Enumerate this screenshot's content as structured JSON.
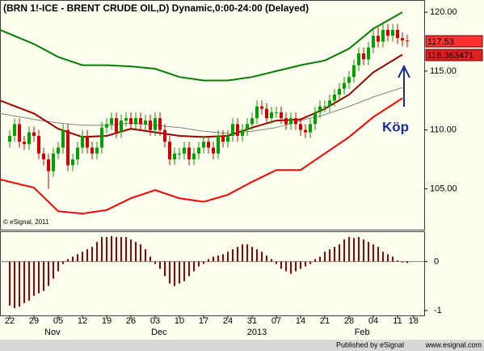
{
  "chart_data": [
    {
      "type": "candlestick",
      "title": "(BRN 1!-ICE - BRENT CRUDE OIL,D) Dynamic,0:00-24:00 (Delayed)",
      "annotation": "Köp",
      "watermark": "© eSignal, 2011",
      "up_color": "#00a000",
      "down_color": "#d00000",
      "x": [
        0,
        1,
        2,
        3,
        4,
        5,
        6,
        7,
        8,
        9,
        10,
        11,
        12,
        13,
        14,
        15,
        16,
        17,
        18,
        19,
        20,
        21,
        22,
        23,
        24,
        25,
        26,
        27,
        28,
        29,
        30,
        31,
        32,
        33,
        34,
        35,
        36,
        37,
        38,
        39,
        40,
        41,
        42,
        43,
        44,
        45,
        46,
        47,
        48,
        49,
        50,
        51,
        52,
        53,
        54,
        55,
        56,
        57,
        58,
        59,
        60,
        61,
        62,
        63,
        64,
        65,
        66,
        67,
        68,
        69,
        70,
        71,
        72,
        73,
        74,
        75,
        76,
        77,
        78,
        79,
        80,
        81,
        82
      ],
      "open": [
        109,
        109.5,
        110.5,
        109,
        108.8,
        109.8,
        109.5,
        108,
        107.5,
        106.5,
        108,
        108.5,
        110,
        107,
        107.5,
        108.5,
        109.5,
        108.5,
        108,
        108.5,
        110.2,
        110.5,
        111,
        109.8,
        110.8,
        111,
        110.5,
        111,
        110.5,
        110.8,
        110,
        111,
        110,
        109,
        107.5,
        108,
        108,
        108.5,
        107.5,
        108,
        108.5,
        109,
        108.5,
        108,
        109.5,
        109,
        109.5,
        110.5,
        109.5,
        110,
        110.5,
        111,
        112,
        111.8,
        111,
        111.5,
        111.5,
        111,
        110.5,
        111,
        110.5,
        110,
        109.8,
        110.5,
        111.5,
        112,
        112,
        112.5,
        113,
        113.5,
        114,
        114.5,
        115.5,
        116.5,
        116,
        117,
        118,
        117.5,
        118.5,
        118,
        118.5,
        117.8,
        117.6
      ],
      "high": [
        110,
        111,
        111,
        109.5,
        110.3,
        110.3,
        110,
        108.5,
        108,
        108.5,
        109,
        110.5,
        110.5,
        108,
        109,
        110,
        110,
        109,
        109,
        110.7,
        111,
        111.5,
        111.5,
        111.3,
        111.5,
        111.5,
        111.5,
        111.5,
        111.3,
        111.3,
        111.5,
        111.5,
        110.5,
        109.5,
        108.5,
        108.5,
        109,
        109,
        108.5,
        109,
        109.5,
        109.5,
        109,
        110,
        110,
        110,
        111,
        111,
        110.5,
        111,
        111.5,
        112.5,
        112.5,
        112.3,
        112,
        112,
        112,
        111.5,
        111.5,
        111.5,
        111,
        110.5,
        111,
        112,
        112.5,
        112.5,
        113,
        113.5,
        114,
        114.5,
        115,
        116,
        117,
        117,
        117.5,
        118.5,
        118.7,
        119,
        119,
        119,
        119,
        118.3,
        118.1
      ],
      "low": [
        108.5,
        109,
        108.5,
        108.3,
        108.3,
        109,
        107.5,
        107,
        105,
        106,
        107.5,
        108,
        106.5,
        106.5,
        107,
        108,
        108,
        107.5,
        107.5,
        108,
        109.7,
        110,
        109.3,
        109.3,
        110.3,
        110,
        110,
        110,
        110,
        109.5,
        109.5,
        109.5,
        108.5,
        107,
        107,
        107.5,
        107.5,
        107,
        107,
        107.5,
        108,
        108,
        107.5,
        107.5,
        108.5,
        108.5,
        109,
        109,
        109,
        109.5,
        110,
        110.5,
        111.3,
        110.5,
        110.5,
        111,
        110.5,
        110,
        110,
        110,
        109.5,
        109.3,
        109.3,
        110,
        111,
        111.5,
        111.5,
        112,
        112.5,
        113,
        113.5,
        114,
        115,
        115.5,
        115.5,
        116.5,
        117,
        117,
        117.5,
        117.5,
        117.3,
        117.1,
        117
      ],
      "close": [
        109.5,
        110.5,
        109,
        108.8,
        109.8,
        109.5,
        108,
        107.5,
        106.5,
        108,
        108.5,
        110,
        107,
        107.5,
        108.5,
        109.5,
        108.5,
        108,
        108.5,
        110.2,
        110.5,
        111,
        109.8,
        110.8,
        111,
        110.5,
        111,
        110.5,
        110.8,
        110,
        111,
        110,
        109,
        107.5,
        108,
        108,
        108.5,
        107.5,
        108,
        108.5,
        109,
        108.5,
        108,
        109.5,
        109,
        109.5,
        110.5,
        109.5,
        110,
        110.5,
        111,
        112,
        111.8,
        111,
        111.5,
        111.5,
        111,
        110.5,
        111,
        110.5,
        110,
        109.8,
        110.5,
        111.5,
        112,
        112,
        112.5,
        113,
        113.5,
        114,
        114.5,
        115.5,
        116.5,
        116,
        117,
        118,
        117.5,
        118.5,
        118,
        118.5,
        117.8,
        117.6,
        117.53
      ],
      "overlay_x": [
        -2,
        5,
        10,
        15,
        20,
        25,
        30,
        35,
        40,
        45,
        50,
        55,
        60,
        65,
        70,
        75,
        81
      ],
      "overlays": [
        {
          "color": "#008000",
          "values": [
            118.5,
            117.3,
            116.2,
            115.5,
            115.5,
            115.4,
            115.2,
            114.5,
            114.2,
            114.2,
            114.5,
            115,
            115.5,
            115.9,
            116.9,
            118.6,
            120
          ]
        },
        {
          "color": "#808080",
          "values": [
            111.4,
            110.9,
            110.6,
            110.4,
            110.4,
            110.6,
            110.4,
            110.2,
            109.9,
            109.7,
            109.9,
            110.2,
            110.8,
            111.3,
            112,
            112.8,
            113.6
          ]
        },
        {
          "color": "#a00000",
          "values": [
            112.5,
            111.4,
            110.1,
            109.4,
            109.5,
            110.1,
            109.8,
            109.5,
            109.4,
            109.5,
            110.2,
            110.8,
            110.9,
            111.8,
            113,
            114.9,
            116.4
          ]
        },
        {
          "color": "#ff0000",
          "values": [
            105.8,
            105.1,
            103.1,
            102.9,
            103.2,
            104.2,
            104.9,
            104.2,
            103.9,
            104.5,
            105.6,
            106.6,
            106.6,
            108,
            109.4,
            111.1,
            112.7
          ]
        }
      ],
      "price_markers": [
        {
          "value": 117.53,
          "color": "#ff3030"
        },
        {
          "value": 116.363471,
          "color": "#e02020"
        }
      ],
      "xlim": [
        -2,
        85.5
      ],
      "ylim": [
        101.6,
        120.9
      ],
      "yticks": [
        {
          "value": 105,
          "label": "105.00"
        },
        {
          "value": 110,
          "label": "110.00"
        },
        {
          "value": 115,
          "label": "115.00"
        },
        {
          "value": 120,
          "label": "120.00"
        }
      ]
    },
    {
      "type": "bar",
      "color": "#a00000",
      "x": [
        0,
        1,
        2,
        3,
        4,
        5,
        6,
        7,
        8,
        9,
        10,
        11,
        12,
        13,
        14,
        15,
        16,
        17,
        18,
        19,
        20,
        21,
        22,
        23,
        24,
        25,
        26,
        27,
        28,
        29,
        30,
        31,
        32,
        33,
        34,
        35,
        36,
        37,
        38,
        39,
        40,
        41,
        42,
        43,
        44,
        45,
        46,
        47,
        48,
        49,
        50,
        51,
        52,
        53,
        54,
        55,
        56,
        57,
        58,
        59,
        60,
        61,
        62,
        63,
        64,
        65,
        66,
        67,
        68,
        69,
        70,
        71,
        72,
        73,
        74,
        75,
        76,
        77,
        78,
        79,
        80,
        81,
        82
      ],
      "values": [
        -0.9,
        -0.95,
        -0.92,
        -0.85,
        -0.8,
        -0.7,
        -0.65,
        -0.6,
        -0.5,
        -0.35,
        -0.2,
        -0.05,
        0.05,
        0.1,
        0.15,
        0.2,
        0.25,
        0.3,
        0.4,
        0.5,
        0.5,
        0.52,
        0.5,
        0.5,
        0.5,
        0.45,
        0.4,
        0.35,
        0.25,
        0.1,
        -0.05,
        -0.15,
        -0.3,
        -0.45,
        -0.5,
        -0.45,
        -0.4,
        -0.3,
        -0.2,
        -0.1,
        -0.05,
        0.05,
        0.1,
        0.12,
        0.15,
        0.2,
        0.25,
        0.3,
        0.35,
        0.35,
        0.3,
        0.25,
        0.2,
        0.12,
        0.05,
        -0.05,
        -0.15,
        -0.2,
        -0.25,
        -0.2,
        -0.15,
        -0.1,
        -0.05,
        0.05,
        0.1,
        0.2,
        0.25,
        0.3,
        0.35,
        0.45,
        0.5,
        0.48,
        0.5,
        0.45,
        0.4,
        0.35,
        0.3,
        0.2,
        0.15,
        0.1,
        0.02,
        -0.02,
        -0.03
      ],
      "xlim": [
        -2,
        85.5
      ],
      "ylim": [
        -1.1,
        0.6
      ],
      "yticks": [
        0,
        -1
      ],
      "xticks": [
        {
          "value": 0,
          "label": "22"
        },
        {
          "value": 5,
          "label": "29"
        },
        {
          "value": 10,
          "label": "05"
        },
        {
          "value": 15,
          "label": "12"
        },
        {
          "value": 20,
          "label": "19"
        },
        {
          "value": 25,
          "label": "26"
        },
        {
          "value": 30,
          "label": "03"
        },
        {
          "value": 35,
          "label": "10"
        },
        {
          "value": 40,
          "label": "17"
        },
        {
          "value": 45,
          "label": "24"
        },
        {
          "value": 50,
          "label": "31"
        },
        {
          "value": 55,
          "label": "07"
        },
        {
          "value": 60,
          "label": "14"
        },
        {
          "value": 65,
          "label": "21"
        },
        {
          "value": 70,
          "label": "28"
        },
        {
          "value": 75,
          "label": "04"
        },
        {
          "value": 80,
          "label": "11"
        },
        {
          "value": 83.3,
          "label": "18"
        }
      ],
      "month_labels": [
        {
          "value": 8.8,
          "label": "Nov"
        },
        {
          "value": 30.8,
          "label": "Dec"
        },
        {
          "value": 51,
          "label": "2013"
        },
        {
          "value": 72.7,
          "label": "Feb"
        }
      ]
    }
  ],
  "footer": {
    "publisher": "Published by eSignal",
    "site": "www.esignal.com"
  }
}
